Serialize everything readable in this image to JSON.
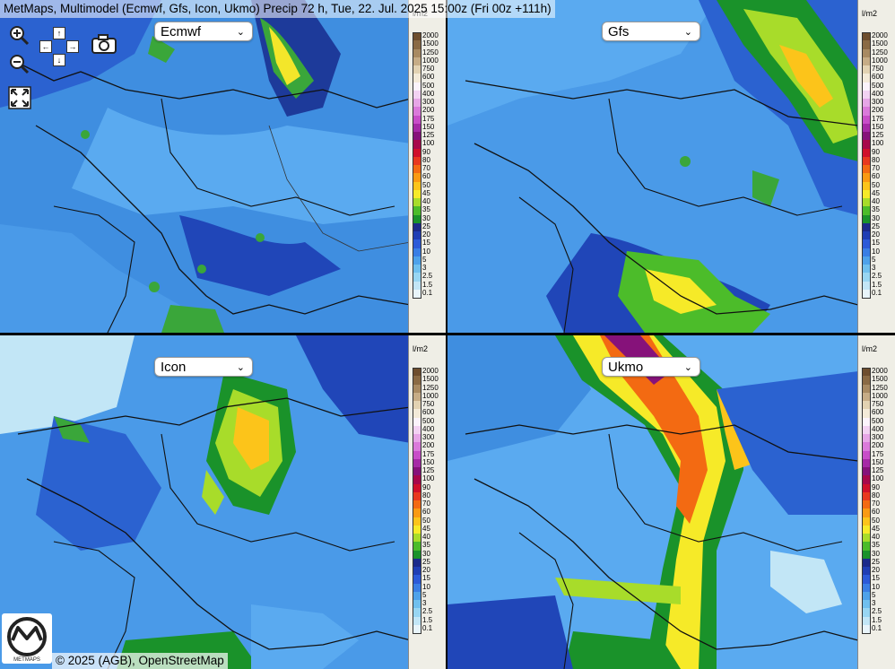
{
  "title": "MetMaps, Multimodel (Ecmwf, Gfs, Icon, Ukmo) Precip 72 h, Tue, 22. Jul. 2025 15:00z (Fri 00z +111h)",
  "copyright": {
    "prefix": "© 2025 (AGB), ",
    "link": "OpenStreetMap"
  },
  "logo_text": "METMAPS",
  "controls": {
    "zoom_in": "zoom-in",
    "zoom_out": "zoom-out",
    "pan_up": "↑",
    "pan_down": "↓",
    "pan_left": "←",
    "pan_right": "→",
    "screenshot": "camera",
    "fullscreen": "fullscreen"
  },
  "panels": [
    {
      "model": "Ecmwf"
    },
    {
      "model": "Gfs"
    },
    {
      "model": "Icon"
    },
    {
      "model": "Ukmo"
    }
  ],
  "legend": {
    "unit": "l/m2",
    "levels": [
      {
        "label": "2000",
        "color": "#6e4e2e"
      },
      {
        "label": "1500",
        "color": "#8a6a44"
      },
      {
        "label": "1250",
        "color": "#a88a62"
      },
      {
        "label": "1000",
        "color": "#c6ac86"
      },
      {
        "label": "750",
        "color": "#e2d2b2"
      },
      {
        "label": "600",
        "color": "#f3ead8"
      },
      {
        "label": "500",
        "color": "#fbf3fb"
      },
      {
        "label": "400",
        "color": "#f2d2f2"
      },
      {
        "label": "300",
        "color": "#e6a6e6"
      },
      {
        "label": "200",
        "color": "#da7ada"
      },
      {
        "label": "175",
        "color": "#c84ec8"
      },
      {
        "label": "150",
        "color": "#a62aa6"
      },
      {
        "label": "125",
        "color": "#86127a"
      },
      {
        "label": "100",
        "color": "#a8084a"
      },
      {
        "label": "90",
        "color": "#d0102a"
      },
      {
        "label": "80",
        "color": "#e8381e"
      },
      {
        "label": "70",
        "color": "#f36a12"
      },
      {
        "label": "60",
        "color": "#fa9a12"
      },
      {
        "label": "50",
        "color": "#fcc41a"
      },
      {
        "label": "45",
        "color": "#f6ea28"
      },
      {
        "label": "40",
        "color": "#a8dc2a"
      },
      {
        "label": "35",
        "color": "#4cbc2a"
      },
      {
        "label": "30",
        "color": "#1a922a"
      },
      {
        "label": "25",
        "color": "#1c2a8a"
      },
      {
        "label": "20",
        "color": "#203eb4"
      },
      {
        "label": "15",
        "color": "#2c5ad8"
      },
      {
        "label": "10",
        "color": "#3a7ee4"
      },
      {
        "label": "5",
        "color": "#4ea2ea"
      },
      {
        "label": "3",
        "color": "#70c0ee"
      },
      {
        "label": "2.5",
        "color": "#98d6f2"
      },
      {
        "label": "1.5",
        "color": "#c2e6f6"
      },
      {
        "label": "0.1",
        "color": "#e8f4fa"
      }
    ]
  }
}
